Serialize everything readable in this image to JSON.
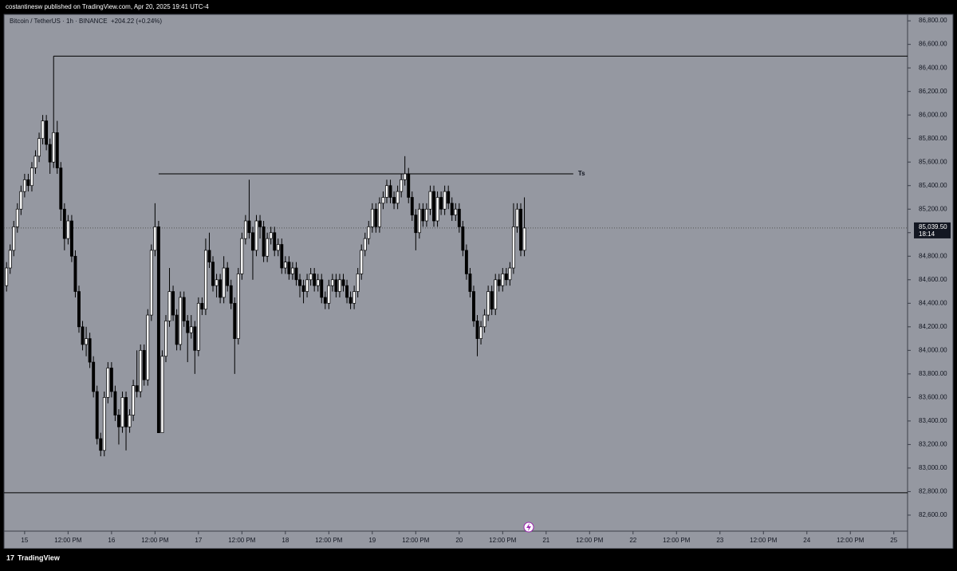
{
  "header": {
    "publisher": "costantinesw published on TradingView.com, Apr 20, 2025 19:41 UTC-4"
  },
  "footer": {
    "brand": "TradingView"
  },
  "chart_data": {
    "type": "candlestick",
    "symbol": "Bitcoin / TetherUS · 1h · BINANCE",
    "change": "+204.22 (+0.24%)",
    "up_color": "#ffffff",
    "down_color": "#000000",
    "ylim": [
      82315,
      86855
    ],
    "yticks": [
      {
        "value": 86800,
        "label": "86,800.00"
      },
      {
        "value": 86600,
        "label": "86,600.00"
      },
      {
        "value": 86400,
        "label": "86,400.00"
      },
      {
        "value": 86200,
        "label": "86,200.00"
      },
      {
        "value": 86000,
        "label": "86,000.00"
      },
      {
        "value": 85800,
        "label": "85,800.00"
      },
      {
        "value": 85600,
        "label": "85,600.00"
      },
      {
        "value": 85400,
        "label": "85,400.00"
      },
      {
        "value": 85200,
        "label": "85,200.00"
      },
      {
        "value": 85000,
        "label": "85,000.00"
      },
      {
        "value": 84800,
        "label": "84,800.00"
      },
      {
        "value": 84600,
        "label": "84,600.00"
      },
      {
        "value": 84400,
        "label": "84,400.00"
      },
      {
        "value": 84200,
        "label": "84,200.00"
      },
      {
        "value": 84000,
        "label": "84,000.00"
      },
      {
        "value": 83800,
        "label": "83,800.00"
      },
      {
        "value": 83600,
        "label": "83,600.00"
      },
      {
        "value": 83400,
        "label": "83,400.00"
      },
      {
        "value": 83200,
        "label": "83,200.00"
      },
      {
        "value": 83000,
        "label": "83,000.00"
      },
      {
        "value": 82800,
        "label": "82,800.00"
      },
      {
        "value": 82600,
        "label": "82,600.00"
      }
    ],
    "xlim": [
      -0.7,
      248.8
    ],
    "xticks": [
      {
        "value": 5,
        "label": "15"
      },
      {
        "value": 17,
        "label": "12:00 PM"
      },
      {
        "value": 29,
        "label": "16"
      },
      {
        "value": 41,
        "label": "12:00 PM"
      },
      {
        "value": 53,
        "label": "17"
      },
      {
        "value": 65,
        "label": "12:00 PM"
      },
      {
        "value": 77,
        "label": "18"
      },
      {
        "value": 89,
        "label": "12:00 PM"
      },
      {
        "value": 101,
        "label": "19"
      },
      {
        "value": 113,
        "label": "12:00 PM"
      },
      {
        "value": 125,
        "label": "20"
      },
      {
        "value": 137,
        "label": "12:00 PM"
      },
      {
        "value": 149,
        "label": "21"
      },
      {
        "value": 161,
        "label": "12:00 PM"
      },
      {
        "value": 173,
        "label": "22"
      },
      {
        "value": 185,
        "label": "12:00 PM"
      },
      {
        "value": 197,
        "label": "23"
      },
      {
        "value": 209,
        "label": "12:00 PM"
      },
      {
        "value": 221,
        "label": "24"
      },
      {
        "value": 233,
        "label": "12:00 PM"
      },
      {
        "value": 245,
        "label": "25"
      }
    ],
    "last_price": {
      "value": 85039.5,
      "label": "85,039.50"
    },
    "countdown": "18:14",
    "levels": [
      {
        "price": 86500,
        "from": 13
      },
      {
        "price": 85500,
        "from": 42,
        "to": 156.5,
        "label": "Ts"
      },
      {
        "price": 82790
      }
    ],
    "candles": [
      [
        84550,
        84750,
        84500,
        84700
      ],
      [
        84700,
        84900,
        84650,
        84850
      ],
      [
        84850,
        85100,
        84800,
        85050
      ],
      [
        85050,
        85250,
        85000,
        85200
      ],
      [
        85200,
        85400,
        85150,
        85350
      ],
      [
        85350,
        85500,
        85300,
        85450
      ],
      [
        85450,
        85500,
        85350,
        85400
      ],
      [
        85400,
        85600,
        85350,
        85550
      ],
      [
        85550,
        85700,
        85500,
        85650
      ],
      [
        85650,
        85850,
        85600,
        85800
      ],
      [
        85800,
        86000,
        85750,
        85950
      ],
      [
        85950,
        86000,
        85700,
        85750
      ],
      [
        85750,
        85800,
        85500,
        85600
      ],
      [
        85600,
        86500,
        85550,
        85850
      ],
      [
        85850,
        85950,
        85500,
        85550
      ],
      [
        85550,
        85600,
        85100,
        85200
      ],
      [
        85200,
        85250,
        84850,
        84950
      ],
      [
        84950,
        85150,
        84900,
        85100
      ],
      [
        85100,
        85150,
        84750,
        84800
      ],
      [
        84800,
        84850,
        84450,
        84500
      ],
      [
        84500,
        84550,
        84150,
        84200
      ],
      [
        84200,
        84250,
        84000,
        84050
      ],
      [
        84050,
        84200,
        83950,
        84100
      ],
      [
        84100,
        84150,
        83850,
        83900
      ],
      [
        83900,
        83950,
        83600,
        83650
      ],
      [
        83650,
        83700,
        83200,
        83250
      ],
      [
        83250,
        83300,
        83100,
        83150
      ],
      [
        83150,
        83650,
        83100,
        83600
      ],
      [
        83600,
        83900,
        83550,
        83850
      ],
      [
        83850,
        83900,
        83600,
        83650
      ],
      [
        83650,
        83700,
        83400,
        83450
      ],
      [
        83450,
        83500,
        83200,
        83350
      ],
      [
        83350,
        83650,
        83300,
        83600
      ],
      [
        83600,
        83650,
        83150,
        83350
      ],
      [
        83350,
        83500,
        83300,
        83450
      ],
      [
        83450,
        83750,
        83400,
        83700
      ],
      [
        83700,
        84000,
        83600,
        83650
      ],
      [
        83650,
        84050,
        83600,
        84000
      ],
      [
        84000,
        84050,
        83700,
        83750
      ],
      [
        83750,
        84350,
        83700,
        84300
      ],
      [
        84300,
        84900,
        84250,
        84850
      ],
      [
        84850,
        85250,
        84800,
        85050
      ],
      [
        85050,
        85100,
        83300,
        83300
      ],
      [
        83300,
        84000,
        83300,
        83950
      ],
      [
        83950,
        84300,
        83900,
        84250
      ],
      [
        84250,
        84700,
        84200,
        84500
      ],
      [
        84500,
        84550,
        84250,
        84300
      ],
      [
        84300,
        84350,
        84000,
        84050
      ],
      [
        84050,
        84500,
        84000,
        84450
      ],
      [
        84450,
        84500,
        84200,
        84250
      ],
      [
        84250,
        84300,
        83900,
        84150
      ],
      [
        84150,
        84300,
        84100,
        84200
      ],
      [
        84200,
        84250,
        83800,
        84000
      ],
      [
        84000,
        84450,
        83950,
        84400
      ],
      [
        84400,
        84450,
        84300,
        84350
      ],
      [
        84350,
        84950,
        84300,
        84850
      ],
      [
        84850,
        85000,
        84700,
        84750
      ],
      [
        84750,
        84800,
        84500,
        84550
      ],
      [
        84550,
        84650,
        84450,
        84600
      ],
      [
        84600,
        84650,
        84400,
        84450
      ],
      [
        84450,
        84800,
        84400,
        84700
      ],
      [
        84700,
        84750,
        84500,
        84550
      ],
      [
        84550,
        84600,
        84350,
        84400
      ],
      [
        84400,
        84450,
        83800,
        84100
      ],
      [
        84100,
        84700,
        84050,
        84650
      ],
      [
        84650,
        85000,
        84600,
        84950
      ],
      [
        84950,
        85150,
        84900,
        85100
      ],
      [
        85100,
        85450,
        84950,
        85000
      ],
      [
        85000,
        85050,
        84600,
        84850
      ],
      [
        84850,
        85150,
        84800,
        85100
      ],
      [
        85100,
        85150,
        84950,
        85050
      ],
      [
        85050,
        85100,
        84750,
        84800
      ],
      [
        84800,
        85000,
        84750,
        84950
      ],
      [
        84950,
        85050,
        84900,
        85000
      ],
      [
        85000,
        85050,
        84800,
        84850
      ],
      [
        84850,
        84950,
        84800,
        84900
      ],
      [
        84900,
        84950,
        84650,
        84700
      ],
      [
        84700,
        84800,
        84650,
        84750
      ],
      [
        84750,
        84800,
        84600,
        84650
      ],
      [
        84650,
        84750,
        84600,
        84700
      ],
      [
        84700,
        84750,
        84550,
        84600
      ],
      [
        84600,
        84650,
        84450,
        84550
      ],
      [
        84550,
        84600,
        84400,
        84500
      ],
      [
        84500,
        84650,
        84450,
        84600
      ],
      [
        84600,
        84700,
        84550,
        84650
      ],
      [
        84650,
        84700,
        84500,
        84550
      ],
      [
        84550,
        84650,
        84500,
        84600
      ],
      [
        84600,
        84650,
        84400,
        84450
      ],
      [
        84450,
        84500,
        84350,
        84400
      ],
      [
        84400,
        84600,
        84350,
        84550
      ],
      [
        84550,
        84650,
        84500,
        84600
      ],
      [
        84600,
        84650,
        84450,
        84500
      ],
      [
        84500,
        84650,
        84450,
        84600
      ],
      [
        84600,
        84650,
        84500,
        84550
      ],
      [
        84550,
        84600,
        84400,
        84450
      ],
      [
        84450,
        84500,
        84350,
        84400
      ],
      [
        84400,
        84550,
        84350,
        84500
      ],
      [
        84500,
        84700,
        84450,
        84650
      ],
      [
        84650,
        84900,
        84600,
        84850
      ],
      [
        84850,
        85000,
        84800,
        84950
      ],
      [
        84950,
        85100,
        84900,
        85050
      ],
      [
        85050,
        85250,
        85000,
        85200
      ],
      [
        85200,
        85250,
        85000,
        85050
      ],
      [
        85050,
        85300,
        85000,
        85250
      ],
      [
        85250,
        85350,
        85200,
        85300
      ],
      [
        85300,
        85450,
        85250,
        85400
      ],
      [
        85400,
        85450,
        85250,
        85300
      ],
      [
        85300,
        85350,
        85200,
        85250
      ],
      [
        85250,
        85400,
        85200,
        85350
      ],
      [
        85350,
        85500,
        85300,
        85450
      ],
      [
        85450,
        85650,
        85400,
        85500
      ],
      [
        85500,
        85550,
        85250,
        85300
      ],
      [
        85300,
        85350,
        85100,
        85150
      ],
      [
        85150,
        85200,
        84850,
        85000
      ],
      [
        85000,
        85250,
        84950,
        85200
      ],
      [
        85200,
        85250,
        85050,
        85100
      ],
      [
        85100,
        85250,
        85050,
        85200
      ],
      [
        85200,
        85400,
        85150,
        85350
      ],
      [
        85350,
        85400,
        85050,
        85100
      ],
      [
        85100,
        85350,
        85050,
        85300
      ],
      [
        85300,
        85350,
        85150,
        85200
      ],
      [
        85200,
        85400,
        85150,
        85350
      ],
      [
        85350,
        85400,
        85200,
        85250
      ],
      [
        85250,
        85300,
        85100,
        85150
      ],
      [
        85150,
        85250,
        85100,
        85200
      ],
      [
        85200,
        85250,
        85000,
        85050
      ],
      [
        85050,
        85100,
        84800,
        84850
      ],
      [
        84850,
        84900,
        84600,
        84650
      ],
      [
        84650,
        84700,
        84450,
        84500
      ],
      [
        84500,
        84550,
        84200,
        84250
      ],
      [
        84250,
        84300,
        83950,
        84100
      ],
      [
        84100,
        84250,
        84050,
        84200
      ],
      [
        84200,
        84350,
        84150,
        84300
      ],
      [
        84300,
        84550,
        84250,
        84500
      ],
      [
        84500,
        84550,
        84300,
        84350
      ],
      [
        84350,
        84650,
        84300,
        84600
      ],
      [
        84600,
        84650,
        84500,
        84550
      ],
      [
        84550,
        84700,
        84500,
        84650
      ],
      [
        84650,
        84700,
        84550,
        84600
      ],
      [
        84600,
        84750,
        84550,
        84700
      ],
      [
        84700,
        85250,
        84650,
        85050
      ],
      [
        85050,
        85250,
        85000,
        85200
      ],
      [
        85200,
        85250,
        84800,
        84850
      ],
      [
        84850,
        85300,
        84800,
        85039.5
      ]
    ]
  }
}
